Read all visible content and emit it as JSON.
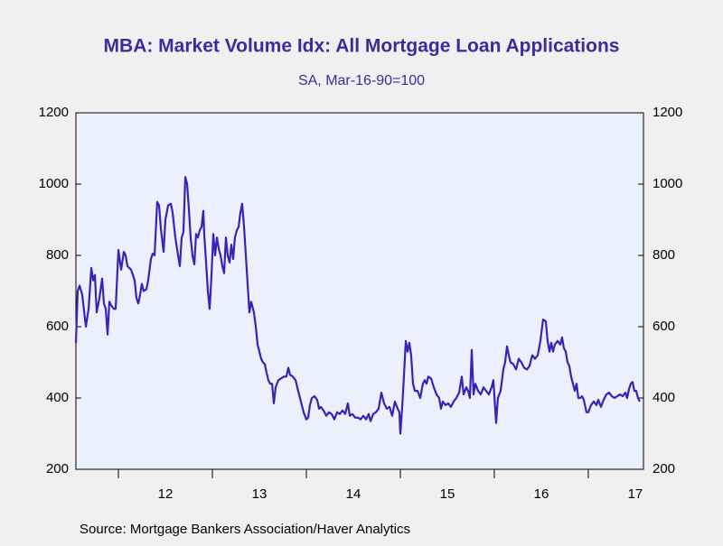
{
  "chart_data": {
    "type": "line",
    "title": "MBA: Market Volume Idx: All Mortgage Loan Applications",
    "subtitle": "SA, Mar-16-90=100",
    "source": "Source:  Mortgage Bankers Association/Haver Analytics",
    "xlim": [
      2011.548,
      2017.587
    ],
    "xticks": [
      {
        "value": 2012,
        "label": "12"
      },
      {
        "value": 2013,
        "label": "13"
      },
      {
        "value": 2014,
        "label": "14"
      },
      {
        "value": 2015,
        "label": "15"
      },
      {
        "value": 2016,
        "label": "16"
      },
      {
        "value": 2017,
        "label": "17"
      }
    ],
    "ylim": [
      200,
      1200
    ],
    "yticks": [
      200,
      400,
      600,
      800,
      1000,
      1200
    ],
    "y2lim": [
      200,
      1200
    ],
    "y2ticks": [
      200,
      400,
      600,
      800,
      1000,
      1200
    ],
    "grid": false,
    "x": [
      2011.548,
      2011.567,
      2011.587,
      2011.615,
      2011.654,
      2011.683,
      2011.712,
      2011.731,
      2011.75,
      2011.769,
      2011.798,
      2011.827,
      2011.846,
      2011.865,
      2011.885,
      2011.904,
      2011.923,
      2011.952,
      2011.971,
      2012,
      2012.029,
      2012.058,
      2012.077,
      2012.096,
      2012.135,
      2012.173,
      2012.192,
      2012.212,
      2012.231,
      2012.25,
      2012.269,
      2012.298,
      2012.317,
      2012.346,
      2012.365,
      2012.385,
      2012.413,
      2012.433,
      2012.452,
      2012.481,
      2012.5,
      2012.529,
      2012.558,
      2012.577,
      2012.606,
      2012.635,
      2012.654,
      2012.673,
      2012.692,
      2012.712,
      2012.731,
      2012.75,
      2012.769,
      2012.788,
      2012.808,
      2012.827,
      2012.846,
      2012.865,
      2012.885,
      2012.904,
      2012.913,
      2012.933,
      2012.952,
      2012.971,
      2012.99,
      2013.01,
      2013.029,
      2013.048,
      2013.067,
      2013.087,
      2013.106,
      2013.125,
      2013.144,
      2013.163,
      2013.183,
      2013.202,
      2013.221,
      2013.24,
      2013.26,
      2013.279,
      2013.298,
      2013.317,
      2013.337,
      2013.356,
      2013.375,
      2013.394,
      2013.413,
      2013.442,
      2013.462,
      2013.481,
      2013.5,
      2013.519,
      2013.538,
      2013.558,
      2013.577,
      2013.596,
      2013.615,
      2013.635,
      2013.654,
      2013.673,
      2013.702,
      2013.731,
      2013.76,
      2013.788,
      2013.808,
      2013.827,
      2013.856,
      2013.885,
      2013.913,
      2013.942,
      2013.971,
      2014,
      2014.019,
      2014.038,
      2014.058,
      2014.087,
      2014.115,
      2014.135,
      2014.154,
      2014.183,
      2014.212,
      2014.24,
      2014.269,
      2014.298,
      2014.327,
      2014.356,
      2014.385,
      2014.413,
      2014.442,
      2014.462,
      2014.49,
      2014.519,
      2014.548,
      2014.577,
      2014.606,
      2014.635,
      2014.663,
      2014.683,
      2014.712,
      2014.74,
      2014.769,
      2014.798,
      2014.827,
      2014.856,
      2014.885,
      2014.913,
      2014.942,
      2014.971,
      2014.99,
      2015,
      2015.019,
      2015.038,
      2015.058,
      2015.077,
      2015.096,
      2015.115,
      2015.135,
      2015.154,
      2015.183,
      2015.212,
      2015.24,
      2015.26,
      2015.279,
      2015.298,
      2015.327,
      2015.356,
      2015.385,
      2015.413,
      2015.433,
      2015.452,
      2015.481,
      2015.51,
      2015.538,
      2015.567,
      2015.596,
      2015.625,
      2015.654,
      2015.673,
      2015.702,
      2015.721,
      2015.74,
      2015.76,
      2015.779,
      2015.798,
      2015.827,
      2015.856,
      2015.885,
      2015.913,
      2015.942,
      2015.971,
      2015.99,
      2016.019,
      2016.038,
      2016.067,
      2016.096,
      2016.115,
      2016.135,
      2016.154,
      2016.173,
      2016.202,
      2016.231,
      2016.26,
      2016.288,
      2016.317,
      2016.346,
      2016.375,
      2016.404,
      2016.433,
      2016.462,
      2016.49,
      2016.519,
      2016.548,
      2016.567,
      2016.587,
      2016.606,
      2016.625,
      2016.644,
      2016.673,
      2016.702,
      2016.721,
      2016.74,
      2016.76,
      2016.779,
      2016.798,
      2016.817,
      2016.837,
      2016.856,
      2016.875,
      2016.894,
      2016.913,
      2016.933,
      2016.952,
      2016.981,
      2017,
      2017.029,
      2017.058,
      2017.087,
      2017.106,
      2017.135,
      2017.163,
      2017.192,
      2017.221,
      2017.25,
      2017.279,
      2017.308,
      2017.337,
      2017.365,
      2017.394,
      2017.413,
      2017.433,
      2017.452,
      2017.471,
      2017.49,
      2017.51,
      2017.529,
      2017.548
    ],
    "series": [
      {
        "color": "#3a22b4",
        "values": [
          555,
          700,
          715,
          690,
          600,
          650,
          765,
          730,
          745,
          640,
          680,
          735,
          665,
          650,
          578,
          670,
          660,
          650,
          650,
          815,
          760,
          810,
          800,
          770,
          760,
          730,
          680,
          665,
          690,
          720,
          700,
          705,
          730,
          790,
          805,
          800,
          950,
          940,
          875,
          810,
          900,
          940,
          945,
          920,
          850,
          800,
          770,
          850,
          865,
          1020,
          1000,
          930,
          850,
          800,
          775,
          860,
          850,
          870,
          880,
          925,
          860,
          780,
          700,
          650,
          740,
          860,
          800,
          850,
          820,
          800,
          770,
          750,
          850,
          800,
          780,
          830,
          790,
          850,
          870,
          880,
          920,
          945,
          880,
          800,
          720,
          640,
          670,
          640,
          600,
          550,
          530,
          510,
          500,
          495,
          470,
          450,
          440,
          440,
          385,
          430,
          450,
          455,
          460,
          460,
          485,
          465,
          460,
          450,
          420,
          390,
          360,
          340,
          345,
          380,
          400,
          405,
          395,
          370,
          375,
          365,
          350,
          360,
          355,
          340,
          360,
          355,
          365,
          355,
          385,
          350,
          355,
          345,
          345,
          340,
          350,
          340,
          355,
          335,
          355,
          360,
          370,
          415,
          385,
          370,
          375,
          350,
          390,
          370,
          360,
          300,
          370,
          460,
          560,
          530,
          555,
          520,
          440,
          420,
          420,
          400,
          440,
          450,
          440,
          460,
          455,
          430,
          410,
          400,
          370,
          390,
          380,
          385,
          375,
          390,
          400,
          415,
          460,
          410,
          430,
          420,
          400,
          535,
          410,
          440,
          420,
          410,
          430,
          420,
          410,
          430,
          450,
          330,
          400,
          420,
          480,
          500,
          545,
          520,
          500,
          495,
          480,
          510,
          500,
          485,
          480,
          490,
          520,
          510,
          520,
          560,
          620,
          615,
          560,
          530,
          555,
          530,
          550,
          560,
          550,
          570,
          540,
          530,
          500,
          490,
          460,
          440,
          420,
          440,
          400,
          400,
          405,
          395,
          360,
          360,
          380,
          390,
          380,
          395,
          375,
          395,
          410,
          415,
          405,
          400,
          405,
          410,
          405,
          415,
          400,
          425,
          440,
          445,
          420,
          420,
          400,
          390
        ]
      }
    ]
  }
}
